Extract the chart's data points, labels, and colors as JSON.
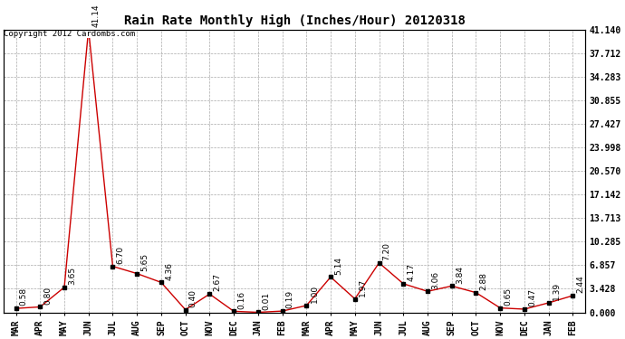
{
  "title": "Rain Rate Monthly High (Inches/Hour) 20120318",
  "copyright": "Copyright 2012 Cardombs.com",
  "months": [
    "MAR",
    "APR",
    "MAY",
    "JUN",
    "JUL",
    "AUG",
    "SEP",
    "OCT",
    "NOV",
    "DEC",
    "JAN",
    "FEB",
    "MAR",
    "APR",
    "MAY",
    "JUN",
    "JUL",
    "AUG",
    "SEP",
    "OCT",
    "NOV",
    "DEC",
    "JAN",
    "FEB"
  ],
  "values": [
    0.58,
    0.8,
    3.65,
    41.14,
    6.7,
    5.65,
    4.36,
    0.4,
    2.67,
    0.16,
    0.01,
    0.19,
    1.0,
    5.14,
    1.97,
    7.2,
    4.17,
    3.06,
    3.84,
    2.88,
    0.65,
    0.47,
    1.39,
    2.44
  ],
  "annotations": [
    "0.58",
    "0.80",
    "3.65",
    "41.14",
    "6.70",
    "5.65",
    "4.36",
    "0.40",
    "2.67",
    "0.16",
    "0.01",
    "0.19",
    "1.00",
    "5.14",
    "1.97",
    "7.20",
    "4.17",
    "3.06",
    "3.84",
    "2.88",
    "0.65",
    "0.47",
    "1.39",
    "2.44"
  ],
  "yticks": [
    0.0,
    3.428,
    6.857,
    10.285,
    13.713,
    17.142,
    20.57,
    23.998,
    27.427,
    30.855,
    34.283,
    37.712,
    41.14
  ],
  "ymax": 41.14,
  "line_color": "#cc0000",
  "marker_color": "#000000",
  "bg_color": "#ffffff",
  "grid_color": "#aaaaaa",
  "title_fontsize": 10,
  "tick_fontsize": 7,
  "annotation_fontsize": 6.5,
  "copyright_fontsize": 6.5
}
